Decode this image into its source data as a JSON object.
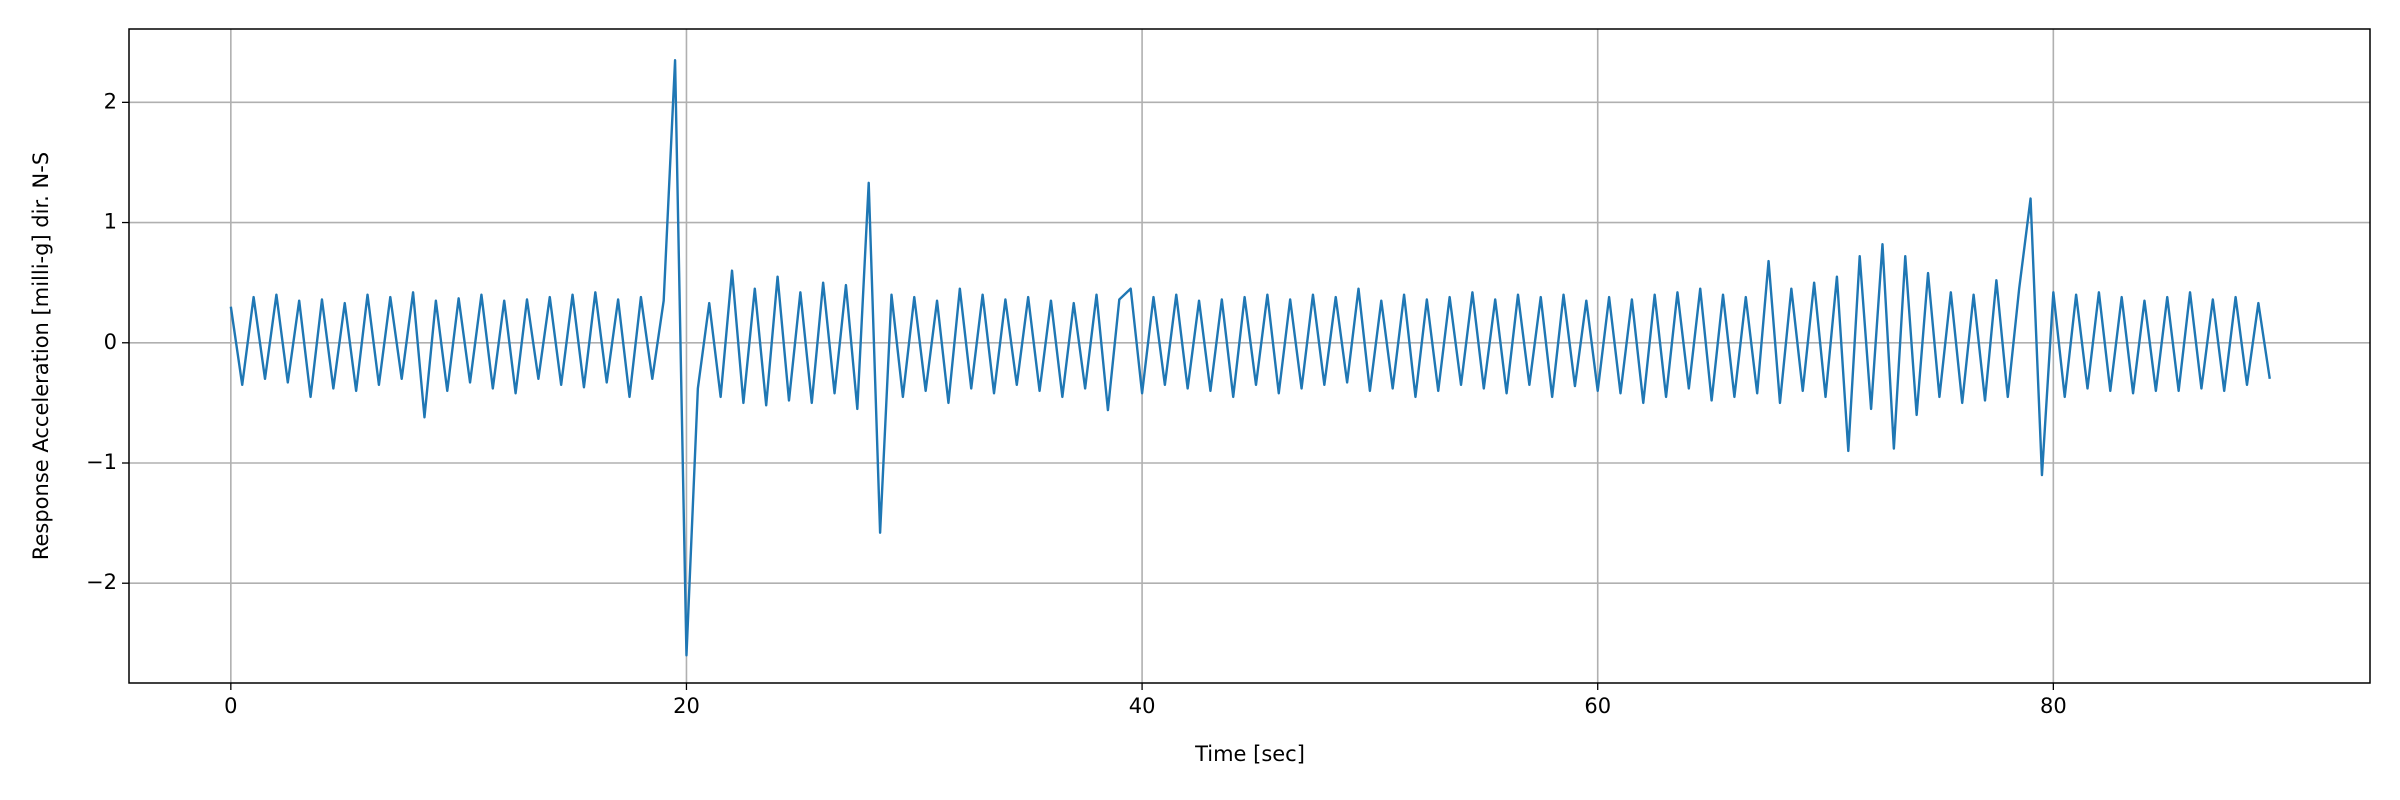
{
  "chart_data": {
    "type": "line",
    "xlabel": "Time [sec]",
    "ylabel": "Response Acceleration [milli-g] dir. N-S",
    "x": [
      0,
      0.5,
      1,
      1.5,
      2,
      2.5,
      3,
      3.5,
      4,
      4.5,
      5,
      5.5,
      6,
      6.5,
      7,
      7.5,
      8,
      8.5,
      9,
      9.5,
      10,
      10.5,
      11,
      11.5,
      12,
      12.5,
      13,
      13.5,
      14,
      14.5,
      15,
      15.5,
      16,
      16.5,
      17,
      17.5,
      18,
      18.5,
      19,
      19.5,
      20,
      20.5,
      21,
      21.5,
      22,
      22.5,
      23,
      23.5,
      24,
      24.5,
      25,
      25.5,
      26,
      26.5,
      27,
      27.5,
      28,
      28.5,
      29,
      29.5,
      30,
      30.5,
      31,
      31.5,
      32,
      32.5,
      33,
      33.5,
      34,
      34.5,
      35,
      35.5,
      36,
      36.5,
      37,
      37.5,
      38,
      38.5,
      39,
      39.5,
      40,
      40.5,
      41,
      41.5,
      42,
      42.5,
      43,
      43.5,
      44,
      44.5,
      45,
      45.5,
      46,
      46.5,
      47,
      47.5,
      48,
      48.5,
      49,
      49.5,
      50,
      50.5,
      51,
      51.5,
      52,
      52.5,
      53,
      53.5,
      54,
      54.5,
      55,
      55.5,
      56,
      56.5,
      57,
      57.5,
      58,
      58.5,
      59,
      59.5,
      60,
      60.5,
      61,
      61.5,
      62,
      62.5,
      63,
      63.5,
      64,
      64.5,
      65,
      65.5,
      66,
      66.5,
      67,
      67.5,
      68,
      68.5,
      69,
      69.5,
      70,
      70.5,
      71,
      71.5,
      72,
      72.5,
      73,
      73.5,
      74,
      74.5,
      75,
      75.5,
      76,
      76.5,
      77,
      77.5,
      78,
      78.5,
      79,
      79.5,
      80,
      80.5,
      81,
      81.5,
      82,
      82.5,
      83,
      83.5,
      84,
      84.5,
      85,
      85.5,
      86,
      86.5,
      87,
      87.5,
      88,
      88.5,
      89,
      89.5
    ],
    "series": [
      {
        "color": "#1f77b4",
        "values": [
          0.3,
          -0.35,
          0.38,
          -0.3,
          0.4,
          -0.33,
          0.35,
          -0.45,
          0.36,
          -0.38,
          0.33,
          -0.4,
          0.4,
          -0.35,
          0.38,
          -0.3,
          0.42,
          -0.62,
          0.35,
          -0.4,
          0.37,
          -0.33,
          0.4,
          -0.38,
          0.35,
          -0.42,
          0.36,
          -0.3,
          0.38,
          -0.35,
          0.4,
          -0.37,
          0.42,
          -0.33,
          0.36,
          -0.45,
          0.38,
          -0.3,
          0.35,
          2.35,
          -2.6,
          -0.38,
          0.33,
          -0.45,
          0.6,
          -0.5,
          0.45,
          -0.52,
          0.55,
          -0.48,
          0.42,
          -0.5,
          0.5,
          -0.42,
          0.48,
          -0.55,
          1.33,
          -1.58,
          0.4,
          -0.45,
          0.38,
          -0.4,
          0.35,
          -0.5,
          0.45,
          -0.38,
          0.4,
          -0.42,
          0.36,
          -0.35,
          0.38,
          -0.4,
          0.35,
          -0.45,
          0.33,
          -0.38,
          0.4,
          -0.56,
          0.36,
          0.45,
          -0.42,
          0.38,
          -0.35,
          0.4,
          -0.38,
          0.35,
          -0.4,
          0.36,
          -0.45,
          0.38,
          -0.35,
          0.4,
          -0.42,
          0.36,
          -0.38,
          0.4,
          -0.35,
          0.38,
          -0.33,
          0.45,
          -0.4,
          0.35,
          -0.38,
          0.4,
          -0.45,
          0.36,
          -0.4,
          0.38,
          -0.35,
          0.42,
          -0.38,
          0.36,
          -0.42,
          0.4,
          -0.35,
          0.38,
          -0.45,
          0.4,
          -0.36,
          0.35,
          -0.4,
          0.38,
          -0.42,
          0.36,
          -0.5,
          0.4,
          -0.45,
          0.42,
          -0.38,
          0.45,
          -0.48,
          0.4,
          -0.45,
          0.38,
          -0.42,
          0.68,
          -0.5,
          0.45,
          -0.4,
          0.5,
          -0.45,
          0.55,
          -0.9,
          0.72,
          -0.55,
          0.82,
          -0.88,
          0.72,
          -0.6,
          0.58,
          -0.45,
          0.42,
          -0.5,
          0.4,
          -0.48,
          0.52,
          -0.45,
          0.45,
          1.2,
          -1.1,
          0.42,
          -0.45,
          0.4,
          -0.38,
          0.42,
          -0.4,
          0.38,
          -0.42,
          0.35,
          -0.4,
          0.38,
          -0.4,
          0.42,
          -0.38,
          0.36,
          -0.4,
          0.38,
          -0.35,
          0.33,
          -0.3
        ]
      }
    ],
    "xlim": [
      -4.47,
      93.9
    ],
    "ylim": [
      -2.83,
      2.61
    ],
    "xticks": [
      0,
      20,
      40,
      60,
      80
    ],
    "yticks": [
      {
        "value": -2,
        "label": "−2"
      },
      {
        "value": -1,
        "label": "−1"
      },
      0,
      1,
      2
    ],
    "grid": true
  }
}
